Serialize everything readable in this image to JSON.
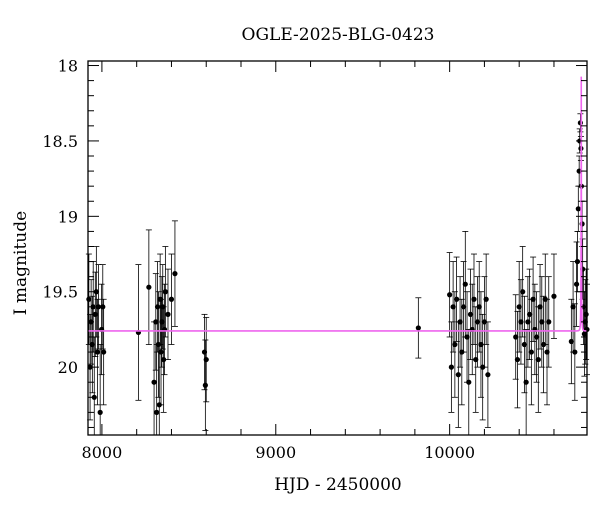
{
  "chart_data": {
    "type": "scatter",
    "title": "OGLE-2025-BLG-0423",
    "xlabel": "HJD - 2450000",
    "ylabel": "I magnitude",
    "xlim": [
      7920,
      10790
    ],
    "ylim": [
      20.45,
      17.97
    ],
    "y_inverted": true,
    "x_ticks": [
      8000,
      9000,
      10000
    ],
    "x_tick_labels": [
      "8000",
      "9000",
      "10000"
    ],
    "y_ticks": [
      18,
      18.5,
      19,
      19.5,
      20
    ],
    "y_tick_labels": [
      "18",
      "18.5",
      "19",
      "19.5",
      "20"
    ],
    "grid": false,
    "legend": "none",
    "colors": {
      "points": "#000000",
      "model": "#ee66ee"
    },
    "model": {
      "baseline": 19.76,
      "t0": 10757,
      "u0": 0.07,
      "tE": 4,
      "fs": 0.28
    },
    "series": [
      {
        "kind": "points_with_errors",
        "x": [
          7925,
          7932,
          7938,
          7945,
          7950,
          7956,
          7962,
          7968,
          7975,
          7980,
          7990,
          7998,
          8005,
          8010,
          8210,
          8270,
          8300,
          8310,
          8315,
          8320,
          8325,
          8330,
          8335,
          8340,
          8345,
          8350,
          8355,
          8360,
          8365,
          8380,
          8400,
          8420,
          8590,
          8595,
          8600,
          9820,
          10000,
          10010,
          10020,
          10030,
          10040,
          10050,
          10060,
          10070,
          10080,
          10090,
          10100,
          10110,
          10120,
          10130,
          10140,
          10150,
          10160,
          10170,
          10180,
          10190,
          10200,
          10210,
          10220,
          10380,
          10390,
          10400,
          10410,
          10420,
          10430,
          10440,
          10450,
          10460,
          10470,
          10480,
          10490,
          10500,
          10510,
          10520,
          10530,
          10540,
          10550,
          10560,
          10570,
          10600,
          10700,
          10710,
          10720,
          10730,
          10735,
          10740,
          10745,
          10748,
          10752,
          10755,
          10758,
          10762,
          10765,
          10770,
          10775,
          10780,
          10785,
          10790
        ],
        "y": [
          19.55,
          20.0,
          19.7,
          19.85,
          19.6,
          20.2,
          19.65,
          19.5,
          19.9,
          19.6,
          20.3,
          19.75,
          19.6,
          19.9,
          19.77,
          19.47,
          20.1,
          19.7,
          20.3,
          19.6,
          19.85,
          20.25,
          19.55,
          19.9,
          19.7,
          19.6,
          19.95,
          19.75,
          19.5,
          19.65,
          19.55,
          19.38,
          19.9,
          20.12,
          19.95,
          19.74,
          19.52,
          20.0,
          19.6,
          19.85,
          19.55,
          20.05,
          19.7,
          19.9,
          19.6,
          19.45,
          19.8,
          20.1,
          19.65,
          19.75,
          19.55,
          19.95,
          19.7,
          19.6,
          19.85,
          20.0,
          19.7,
          19.55,
          20.05,
          19.8,
          19.95,
          19.6,
          19.7,
          19.5,
          19.85,
          20.1,
          19.7,
          19.65,
          19.9,
          19.55,
          19.75,
          19.8,
          19.95,
          19.6,
          19.7,
          19.85,
          19.55,
          19.9,
          19.7,
          19.53,
          19.83,
          19.6,
          19.9,
          19.45,
          19.3,
          18.95,
          18.7,
          18.5,
          18.38,
          18.55,
          18.8,
          19.05,
          19.35,
          19.6,
          19.78,
          19.7,
          19.65,
          19.75
        ],
        "yerr": [
          0.3,
          0.35,
          0.28,
          0.32,
          0.3,
          0.4,
          0.28,
          0.3,
          0.35,
          0.28,
          0.45,
          0.3,
          0.28,
          0.35,
          0.45,
          0.38,
          0.4,
          0.32,
          0.45,
          0.3,
          0.35,
          0.4,
          0.3,
          0.35,
          0.3,
          0.28,
          0.35,
          0.3,
          0.3,
          0.3,
          0.3,
          0.35,
          0.25,
          0.3,
          0.28,
          0.2,
          0.28,
          0.3,
          0.3,
          0.35,
          0.28,
          0.35,
          0.3,
          0.35,
          0.3,
          0.35,
          0.3,
          0.35,
          0.3,
          0.3,
          0.3,
          0.35,
          0.3,
          0.3,
          0.35,
          0.35,
          0.3,
          0.3,
          0.35,
          0.28,
          0.32,
          0.3,
          0.28,
          0.3,
          0.32,
          0.35,
          0.3,
          0.3,
          0.35,
          0.28,
          0.3,
          0.3,
          0.35,
          0.28,
          0.3,
          0.32,
          0.3,
          0.35,
          0.3,
          0.28,
          0.28,
          0.3,
          0.32,
          0.28,
          0.2,
          0.15,
          0.1,
          0.08,
          0.06,
          0.08,
          0.1,
          0.15,
          0.2,
          0.25,
          0.28,
          0.28,
          0.3,
          0.3
        ]
      },
      {
        "kind": "model_curve",
        "x_start": 7920,
        "x_end": 10790
      }
    ]
  }
}
